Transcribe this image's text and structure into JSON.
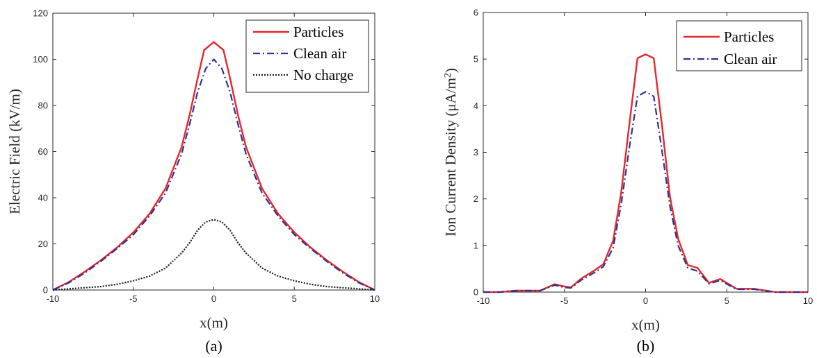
{
  "chart_data": [
    {
      "type": "line",
      "caption": "(a)",
      "xlabel": "x(m)",
      "ylabel": "Electric Field (kV/m)",
      "xlim": [
        -10,
        10
      ],
      "ylim": [
        0,
        120
      ],
      "xticks": [
        "-10",
        "-5",
        "0",
        "5",
        "10"
      ],
      "yticks": [
        "0",
        "20",
        "40",
        "60",
        "80",
        "100",
        "120"
      ],
      "legend_position": "top-right",
      "series": [
        {
          "name": "Particles",
          "color": "#e8262b",
          "style": "solid",
          "x": [
            -10,
            -9,
            -8,
            -7,
            -6,
            -5,
            -4,
            -3,
            -2,
            -1.5,
            -1,
            -0.6,
            0,
            0.6,
            1,
            1.5,
            2,
            3,
            4,
            5,
            6,
            7,
            8,
            9,
            10
          ],
          "y": [
            0,
            3.5,
            8,
            13,
            18.5,
            25,
            33,
            44,
            62,
            76,
            92,
            104,
            107.5,
            104,
            92,
            76,
            62,
            44,
            33,
            25,
            18.5,
            13,
            8,
            3.5,
            0
          ]
        },
        {
          "name": "Clean air",
          "color": "#2e3192",
          "style": "dashdot",
          "x": [
            -10,
            -9,
            -8,
            -7,
            -6,
            -5,
            -4,
            -3,
            -2,
            -1.5,
            -1,
            -0.5,
            0,
            0.5,
            1,
            1.5,
            2,
            3,
            4,
            5,
            6,
            7,
            8,
            9,
            10
          ],
          "y": [
            0,
            3.2,
            7.5,
            12.5,
            18,
            24,
            32,
            42,
            59,
            72,
            86,
            96,
            100,
            96,
            86,
            72,
            59,
            42,
            32,
            24,
            18,
            12.5,
            7.5,
            3.2,
            0
          ]
        },
        {
          "name": "No charge",
          "color": "#1a1a1a",
          "style": "dotted",
          "x": [
            -10,
            -9,
            -8,
            -7,
            -6,
            -5,
            -4,
            -3,
            -2,
            -1.5,
            -1,
            -0.5,
            0,
            0.5,
            1,
            1.5,
            2,
            3,
            4,
            5,
            6,
            7,
            8,
            9,
            10
          ],
          "y": [
            0,
            0.5,
            1,
            1.5,
            2.5,
            4,
            6,
            9.5,
            16,
            20.5,
            26,
            29.5,
            30.5,
            29.5,
            26,
            20.5,
            16,
            9.5,
            6,
            4,
            2.5,
            1.5,
            1,
            0.5,
            0
          ]
        }
      ]
    },
    {
      "type": "line",
      "caption": "(b)",
      "xlabel": "x(m)",
      "ylabel": "Ion Current Density (μA/m",
      "ylabel_sup": "2",
      "ylabel_close": ")",
      "xlim": [
        -10,
        10
      ],
      "ylim": [
        0,
        6
      ],
      "xticks": [
        "-10",
        "-5",
        "0",
        "5",
        "10"
      ],
      "yticks": [
        "0",
        "1",
        "2",
        "3",
        "4",
        "5",
        "6"
      ],
      "legend_position": "top-right",
      "series": [
        {
          "name": "Particles",
          "color": "#e8262b",
          "style": "solid",
          "x": [
            -10,
            -9,
            -8,
            -7,
            -6.5,
            -5.6,
            -5,
            -4.6,
            -4,
            -3,
            -2.6,
            -2,
            -1.5,
            -1,
            -0.5,
            0,
            0.5,
            1,
            1.5,
            2,
            2.6,
            3.2,
            3.9,
            4.6,
            5.6,
            6.7,
            8,
            9,
            10
          ],
          "y": [
            0,
            0,
            0.03,
            0.03,
            0.03,
            0.17,
            0.12,
            0.1,
            0.28,
            0.5,
            0.6,
            1.1,
            2.15,
            3.6,
            5.02,
            5.1,
            5.02,
            3.6,
            2.05,
            1.15,
            0.58,
            0.52,
            0.2,
            0.28,
            0.07,
            0.07,
            0,
            0,
            0
          ]
        },
        {
          "name": "Clean air",
          "color": "#2e3192",
          "style": "dashdot",
          "x": [
            -10,
            -9,
            -8,
            -7,
            -6.5,
            -5.6,
            -5,
            -4.6,
            -4,
            -3,
            -2.6,
            -2,
            -1.5,
            -1,
            -0.5,
            0,
            0.5,
            1,
            1.5,
            2,
            2.6,
            3.2,
            3.9,
            4.6,
            5.6,
            6.7,
            8,
            9,
            10
          ],
          "y": [
            0,
            0,
            0.03,
            0.03,
            0.03,
            0.15,
            0.1,
            0.09,
            0.25,
            0.45,
            0.55,
            0.95,
            1.9,
            3.1,
            4.2,
            4.3,
            4.2,
            3.05,
            1.85,
            1.0,
            0.52,
            0.45,
            0.18,
            0.25,
            0.06,
            0.06,
            0,
            0,
            0
          ]
        }
      ]
    }
  ]
}
